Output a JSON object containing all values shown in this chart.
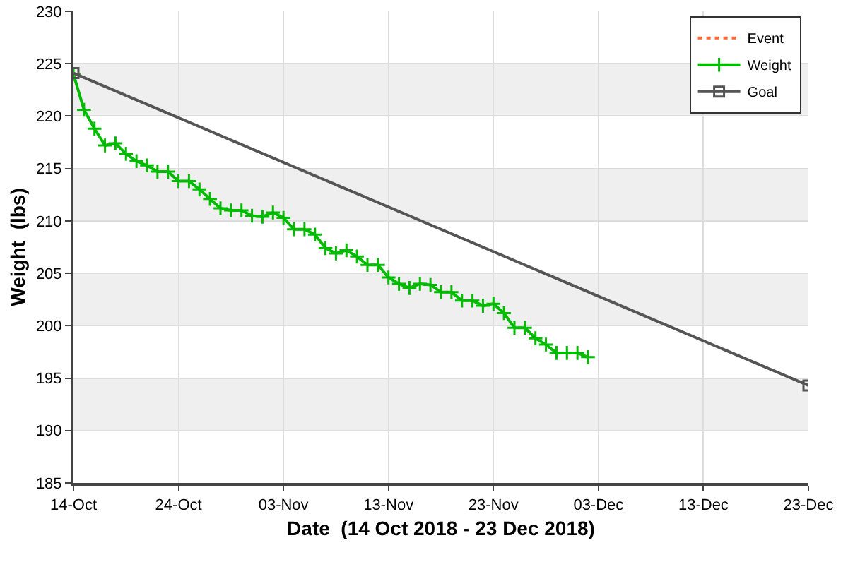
{
  "chart_data": {
    "type": "line",
    "xlabel": "Date  (14 Oct 2018 - 23 Dec 2018)",
    "ylabel": "Weight  (lbs)",
    "xlim": [
      "2018-10-14",
      "2018-12-23"
    ],
    "xticks": [
      {
        "value": "2018-10-14",
        "label": "14-Oct"
      },
      {
        "value": "2018-10-24",
        "label": "24-Oct"
      },
      {
        "value": "2018-11-03",
        "label": "03-Nov"
      },
      {
        "value": "2018-11-13",
        "label": "13-Nov"
      },
      {
        "value": "2018-11-23",
        "label": "23-Nov"
      },
      {
        "value": "2018-12-03",
        "label": "03-Dec"
      },
      {
        "value": "2018-12-13",
        "label": "13-Dec"
      },
      {
        "value": "2018-12-23",
        "label": "23-Dec"
      }
    ],
    "ylim": [
      185,
      230
    ],
    "yticks": [
      185,
      190,
      195,
      200,
      205,
      210,
      215,
      220,
      225,
      230
    ],
    "grid": true,
    "legend": "top right",
    "series": [
      {
        "name": "Event",
        "color": "#ff6633",
        "line_style": "dotted",
        "marker": "none"
      },
      {
        "name": "Weight",
        "color": "#00bb00",
        "line_style": "solid",
        "marker": "cross",
        "x": [
          "2018-10-14",
          "2018-10-15",
          "2018-10-16",
          "2018-10-17",
          "2018-10-18",
          "2018-10-19",
          "2018-10-20",
          "2018-10-21",
          "2018-10-22",
          "2018-10-23",
          "2018-10-24",
          "2018-10-25",
          "2018-10-26",
          "2018-10-27",
          "2018-10-28",
          "2018-10-29",
          "2018-10-30",
          "2018-10-31",
          "2018-11-01",
          "2018-11-02",
          "2018-11-03",
          "2018-11-04",
          "2018-11-05",
          "2018-11-06",
          "2018-11-07",
          "2018-11-08",
          "2018-11-09",
          "2018-11-10",
          "2018-11-11",
          "2018-11-12",
          "2018-11-13",
          "2018-11-14",
          "2018-11-15",
          "2018-11-16",
          "2018-11-17",
          "2018-11-18",
          "2018-11-19",
          "2018-11-20",
          "2018-11-21",
          "2018-11-22",
          "2018-11-23",
          "2018-11-24",
          "2018-11-25",
          "2018-11-26",
          "2018-11-27",
          "2018-11-28",
          "2018-11-29",
          "2018-11-30",
          "2018-12-01",
          "2018-12-02"
        ],
        "values": [
          224.0,
          220.6,
          218.8,
          217.2,
          217.4,
          216.4,
          215.7,
          215.3,
          214.7,
          214.7,
          213.8,
          213.8,
          213.0,
          212.1,
          211.2,
          211.0,
          211.0,
          210.5,
          210.4,
          210.8,
          210.3,
          209.2,
          209.2,
          208.7,
          207.4,
          206.9,
          207.2,
          206.6,
          205.8,
          205.8,
          204.6,
          204.0,
          203.6,
          204.0,
          203.9,
          203.2,
          203.2,
          202.4,
          202.4,
          201.9,
          202.1,
          201.2,
          199.8,
          199.8,
          198.8,
          198.2,
          197.4,
          197.4,
          197.4,
          197.0
        ]
      },
      {
        "name": "Goal",
        "color": "#555555",
        "line_style": "solid",
        "marker": "square",
        "x": [
          "2018-10-14",
          "2018-12-23"
        ],
        "values": [
          224.1,
          194.3
        ]
      }
    ]
  }
}
